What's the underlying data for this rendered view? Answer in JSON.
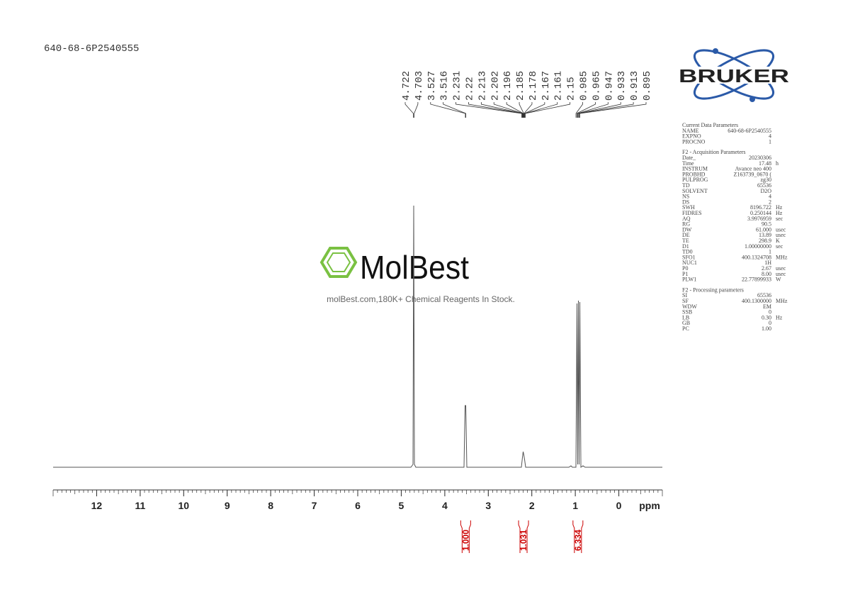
{
  "sample_id": "640-68-6P2540555",
  "peak_labels": [
    4.722,
    4.703,
    3.527,
    3.516,
    2.231,
    2.22,
    2.213,
    2.202,
    2.196,
    2.185,
    2.178,
    2.167,
    2.161,
    2.15,
    0.985,
    0.965,
    0.947,
    0.933,
    0.913,
    0.895
  ],
  "axis": {
    "xlim": [
      13,
      -1
    ],
    "ticks": [
      12,
      11,
      10,
      9,
      8,
      7,
      6,
      5,
      4,
      3,
      2,
      1,
      0
    ],
    "unit": "ppm"
  },
  "integrals": [
    {
      "value": 1.0,
      "label": "1.000"
    },
    {
      "value": 1.031,
      "label": "1.031"
    },
    {
      "value": 6.334,
      "label": "6.334"
    }
  ],
  "watermark": {
    "brand": "MolBest",
    "tagline": "molBest.com,180K+ Chemical Reagents In Stock."
  },
  "logo": "BRUKER",
  "parameters": [
    {
      "title": "Current Data Parameters",
      "rows": [
        [
          "NAME",
          "640-68-6P2540555",
          ""
        ],
        [
          "EXPNO",
          "4",
          ""
        ],
        [
          "PROCNO",
          "1",
          ""
        ]
      ]
    },
    {
      "title": "F2 - Acquisition Parameters",
      "rows": [
        [
          "Date_",
          "20230306",
          ""
        ],
        [
          "Time",
          "17.48",
          "h"
        ],
        [
          "INSTRUM",
          "Avance neo 400",
          ""
        ],
        [
          "PROBHD",
          "Z163739_0670 (",
          ""
        ],
        [
          "PULPROG",
          "zg30",
          ""
        ],
        [
          "TD",
          "65536",
          ""
        ],
        [
          "SOLVENT",
          "D2O",
          ""
        ],
        [
          "NS",
          "4",
          ""
        ],
        [
          "DS",
          "2",
          ""
        ],
        [
          "SWH",
          "8196.722",
          "Hz"
        ],
        [
          "FIDRES",
          "0.250144",
          "Hz"
        ],
        [
          "AQ",
          "3.9976959",
          "sec"
        ],
        [
          "RG",
          "90.5",
          ""
        ],
        [
          "DW",
          "61.000",
          "usec"
        ],
        [
          "DE",
          "13.89",
          "usec"
        ],
        [
          "TE",
          "298.9",
          "K"
        ],
        [
          "D1",
          "1.00000000",
          "sec"
        ],
        [
          "TD0",
          "1",
          ""
        ],
        [
          "SFO1",
          "400.1324708",
          "MHz"
        ],
        [
          "NUC1",
          "1H",
          ""
        ],
        [
          "P0",
          "2.67",
          "usec"
        ],
        [
          "P1",
          "8.00",
          "usec"
        ],
        [
          "PLW1",
          "22.77899933",
          "W"
        ]
      ]
    },
    {
      "title": "F2 - Processing parameters",
      "rows": [
        [
          "SI",
          "65536",
          ""
        ],
        [
          "SF",
          "400.1300000",
          "MHz"
        ],
        [
          "WDW",
          "EM",
          ""
        ],
        [
          "SSB",
          "0",
          ""
        ],
        [
          "LB",
          "0.30",
          "Hz"
        ],
        [
          "GB",
          "0",
          ""
        ],
        [
          "PC",
          "1.00",
          ""
        ]
      ]
    }
  ]
}
